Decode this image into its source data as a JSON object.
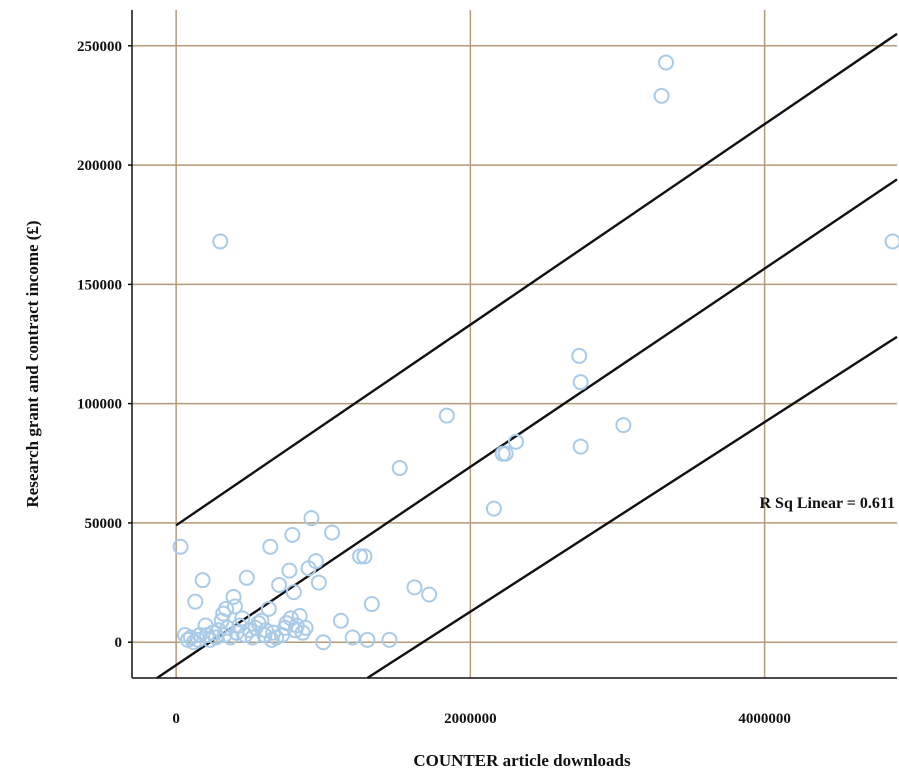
{
  "chart_data": {
    "type": "scatter",
    "title": "",
    "xlabel": "COUNTER article downloads",
    "ylabel": "Research grant and contract income (£)",
    "xlim": [
      -300000,
      4900000
    ],
    "ylim": [
      -15000,
      265000
    ],
    "x_ticks": [
      0,
      2000000,
      4000000
    ],
    "x_tick_labels": [
      "0",
      "2000000",
      "4000000"
    ],
    "y_ticks": [
      0,
      50000,
      100000,
      150000,
      200000,
      250000
    ],
    "y_tick_labels": [
      "0",
      "50000",
      "100000",
      "150000",
      "200000",
      "250000"
    ],
    "grid": true,
    "annotation": "R Sq Linear = 0.611",
    "fit_lines": [
      {
        "role": "upper",
        "x": [
          0,
          4900000
        ],
        "y": [
          49000,
          255000
        ]
      },
      {
        "role": "fit",
        "x": [
          -130000,
          4900000
        ],
        "y": [
          -15000,
          194000
        ]
      },
      {
        "role": "lower",
        "x": [
          1300000,
          4900000
        ],
        "y": [
          -15000,
          128000
        ]
      }
    ],
    "points": [
      [
        30000,
        40000
      ],
      [
        60000,
        3000
      ],
      [
        80000,
        1000
      ],
      [
        100000,
        2000
      ],
      [
        120000,
        0
      ],
      [
        130000,
        17000
      ],
      [
        150000,
        1000
      ],
      [
        160000,
        3000
      ],
      [
        180000,
        26000
      ],
      [
        200000,
        7000
      ],
      [
        210000,
        3000
      ],
      [
        230000,
        1000
      ],
      [
        250000,
        4000
      ],
      [
        270000,
        2000
      ],
      [
        290000,
        5000
      ],
      [
        300000,
        168000
      ],
      [
        310000,
        9000
      ],
      [
        320000,
        12000
      ],
      [
        330000,
        3000
      ],
      [
        340000,
        14000
      ],
      [
        350000,
        6000
      ],
      [
        370000,
        2000
      ],
      [
        390000,
        19000
      ],
      [
        400000,
        15000
      ],
      [
        410000,
        4000
      ],
      [
        430000,
        7000
      ],
      [
        450000,
        10000
      ],
      [
        470000,
        3000
      ],
      [
        480000,
        27000
      ],
      [
        500000,
        5000
      ],
      [
        520000,
        2000
      ],
      [
        540000,
        6000
      ],
      [
        560000,
        8000
      ],
      [
        580000,
        9000
      ],
      [
        600000,
        3000
      ],
      [
        610000,
        5000
      ],
      [
        630000,
        14000
      ],
      [
        640000,
        40000
      ],
      [
        650000,
        1000
      ],
      [
        660000,
        4000
      ],
      [
        680000,
        2000
      ],
      [
        700000,
        24000
      ],
      [
        720000,
        3000
      ],
      [
        740000,
        6000
      ],
      [
        750000,
        8000
      ],
      [
        770000,
        30000
      ],
      [
        780000,
        10000
      ],
      [
        790000,
        45000
      ],
      [
        800000,
        21000
      ],
      [
        810000,
        5000
      ],
      [
        820000,
        7000
      ],
      [
        840000,
        11000
      ],
      [
        860000,
        4000
      ],
      [
        880000,
        6000
      ],
      [
        900000,
        31000
      ],
      [
        920000,
        52000
      ],
      [
        950000,
        34000
      ],
      [
        970000,
        25000
      ],
      [
        1000000,
        0
      ],
      [
        1060000,
        46000
      ],
      [
        1120000,
        9000
      ],
      [
        1200000,
        2000
      ],
      [
        1250000,
        36000
      ],
      [
        1280000,
        36000
      ],
      [
        1300000,
        1000
      ],
      [
        1330000,
        16000
      ],
      [
        1450000,
        1000
      ],
      [
        1520000,
        73000
      ],
      [
        1620000,
        23000
      ],
      [
        1720000,
        20000
      ],
      [
        1840000,
        95000
      ],
      [
        2160000,
        56000
      ],
      [
        2220000,
        79000
      ],
      [
        2240000,
        79000
      ],
      [
        2310000,
        84000
      ],
      [
        2740000,
        120000
      ],
      [
        2750000,
        109000
      ],
      [
        2750000,
        82000
      ],
      [
        3040000,
        91000
      ],
      [
        3300000,
        229000
      ],
      [
        3330000,
        243000
      ],
      [
        4870000,
        168000
      ]
    ]
  }
}
